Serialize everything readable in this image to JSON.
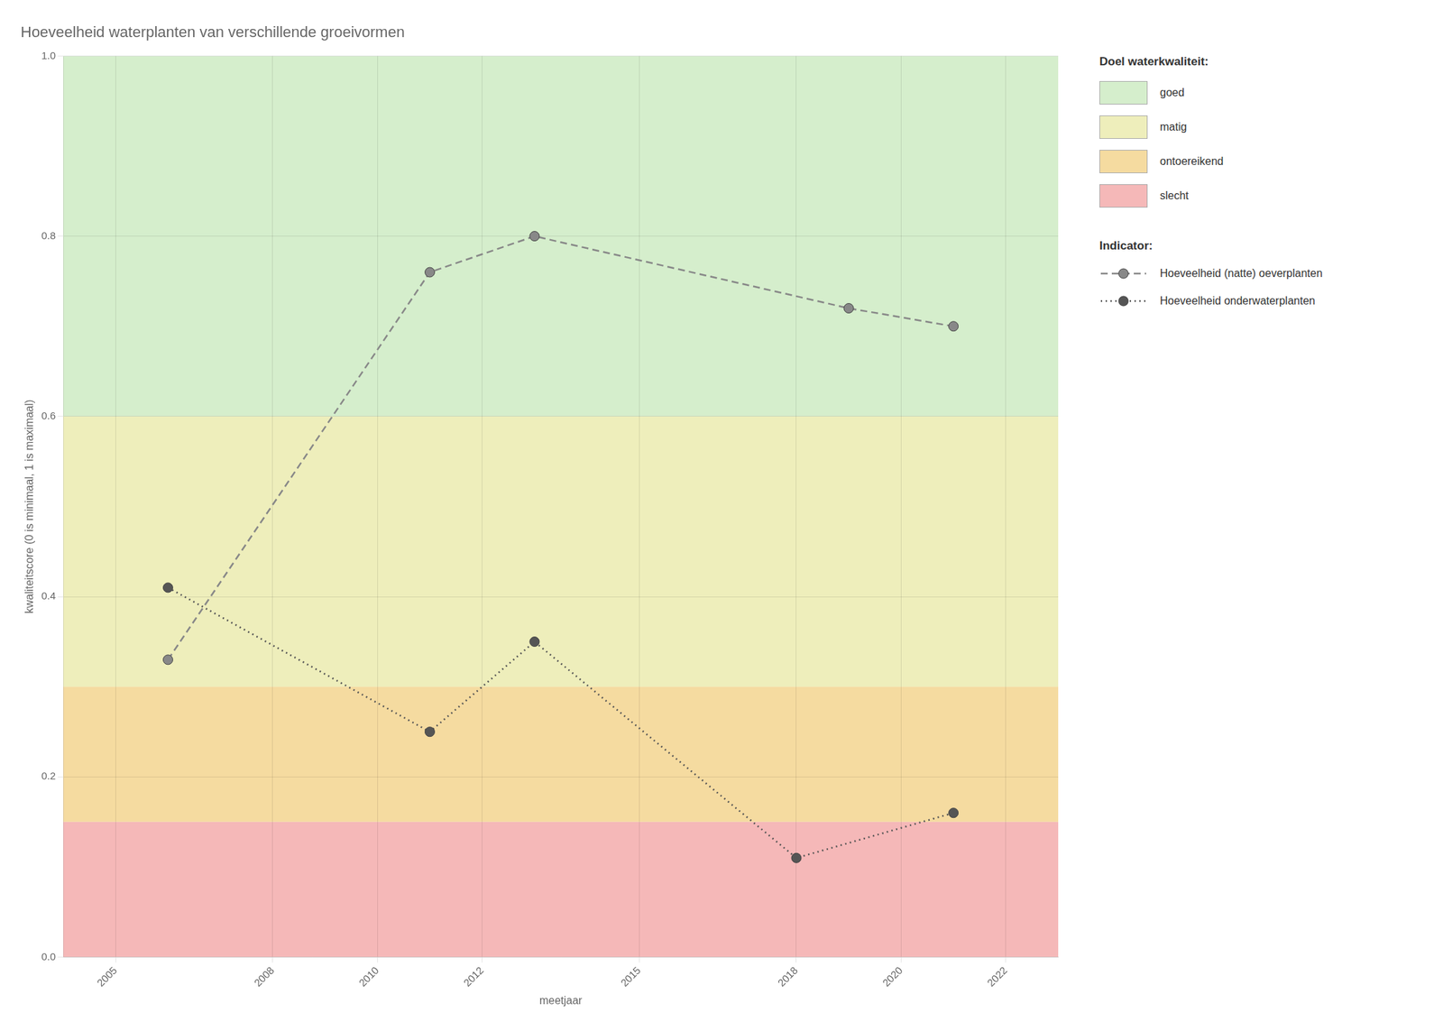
{
  "chart_data": {
    "type": "line",
    "title": "Hoeveelheid waterplanten van verschillende groeivormen",
    "x_label": "meetjaar",
    "y_label": "kwaliteitscore (0 is minimaal, 1 is maximaal)",
    "xlim": [
      2004,
      2023
    ],
    "ylim": [
      0.0,
      1.0
    ],
    "xticks": [
      2005,
      2008,
      2010,
      2012,
      2015,
      2018,
      2020,
      2022
    ],
    "yticks": [
      {
        "value": 0.0,
        "label": "0.0"
      },
      0.2,
      0.4,
      0.6,
      0.8,
      {
        "value": 1.0,
        "label": "1.0"
      }
    ],
    "grid": true,
    "legend": "right",
    "zones_title": "Doel waterkwaliteit:",
    "zones": [
      {
        "label": "goed",
        "min": 0.6,
        "max": 1.0,
        "color": "#d5eecc"
      },
      {
        "label": "matig",
        "min": 0.3,
        "max": 0.6,
        "color": "#eeeebb"
      },
      {
        "label": "ontoereikend",
        "min": 0.15,
        "max": 0.3,
        "color": "#f5dba0"
      },
      {
        "label": "slecht",
        "min": 0.0,
        "max": 0.15,
        "color": "#f5b8b8"
      }
    ],
    "legend_title": "Indicator:",
    "series": [
      {
        "name": "Hoeveelheid (natte) oeverplanten",
        "color": "#888888",
        "line_style": "dashed",
        "marker": "circle",
        "x": [
          2006,
          2011,
          2013,
          2019,
          2021
        ],
        "values": [
          0.33,
          0.76,
          0.8,
          0.72,
          0.7
        ]
      },
      {
        "name": "Hoeveelheid onderwaterplanten",
        "color": "#555555",
        "line_style": "dotted",
        "marker": "circle",
        "x": [
          2006,
          2011,
          2013,
          2018,
          2021
        ],
        "values": [
          0.41,
          0.25,
          0.35,
          0.11,
          0.16
        ]
      }
    ]
  }
}
